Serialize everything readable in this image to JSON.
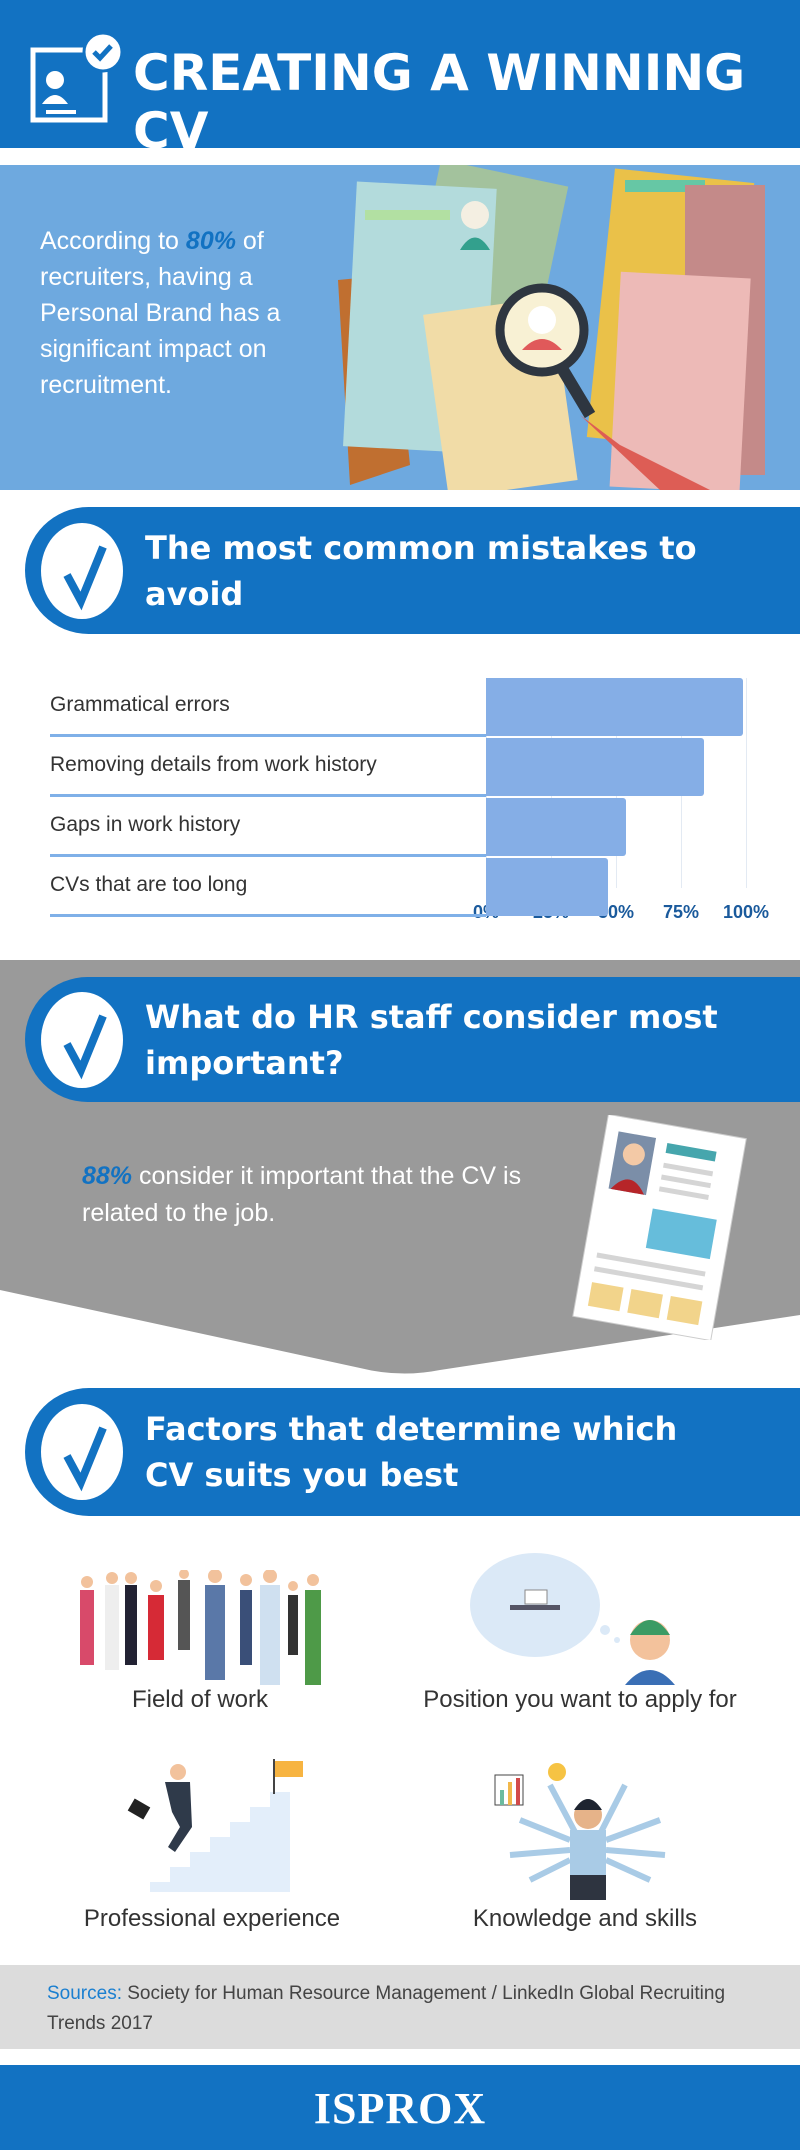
{
  "header": {
    "title": "CREATING A WINNING CV",
    "icon": "cv-check-icon"
  },
  "intro": {
    "pre": "According to ",
    "highlight": "80%",
    "post": "  of recruiters, having a Personal Brand has a significant impact on recruitment."
  },
  "sections": {
    "mistakes": {
      "title": "The most common mistakes to avoid"
    },
    "hr": {
      "title": "What do HR staff consider most important?",
      "highlight": "88%",
      "text": " consider it important that the CV is related to the job."
    },
    "factors": {
      "title": "Factors that determine which CV suits you best",
      "items": [
        {
          "label": "Field of work"
        },
        {
          "label": "Position you want to apply for"
        },
        {
          "label": "Professional experience"
        },
        {
          "label": "Knowledge and skills"
        }
      ]
    }
  },
  "chart_data": {
    "type": "bar",
    "orientation": "horizontal",
    "categories": [
      "Grammatical errors",
      "Removing details from work history",
      "Gaps in work history",
      "CVs that are too long"
    ],
    "values": [
      99,
      84,
      54,
      47
    ],
    "xlim": [
      0,
      100
    ],
    "ticks": [
      "0%",
      "25%",
      "50%",
      "75%",
      "100%"
    ],
    "bar_color": "#85aee6",
    "grid": true
  },
  "sources": {
    "label": "Sources:",
    "text": " Society for Human Resource Management / LinkedIn Global Recruiting Trends 2017"
  },
  "footer": {
    "logo": "ISPROX"
  },
  "colors": {
    "brand": "#1272c2",
    "light_blue": "#6ea9df",
    "gray": "#9a9a9a"
  }
}
